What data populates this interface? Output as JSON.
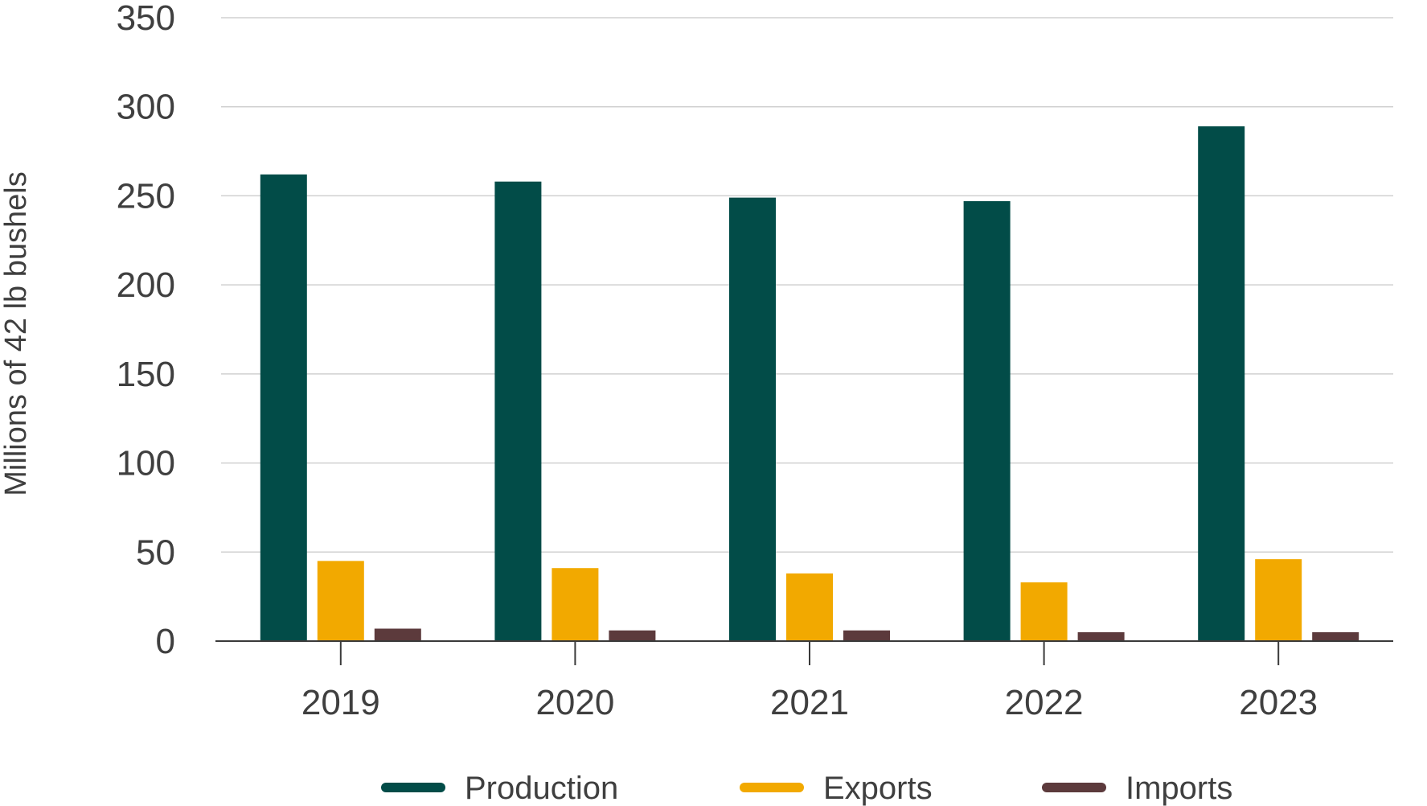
{
  "chart_data": {
    "type": "bar",
    "title": "",
    "xlabel": "",
    "ylabel": "Millions of 42 lb bushels",
    "categories": [
      "2019",
      "2020",
      "2021",
      "2022",
      "2023"
    ],
    "series": [
      {
        "name": "Production",
        "color": "#024c48",
        "values": [
          262,
          258,
          249,
          247,
          289
        ]
      },
      {
        "name": "Exports",
        "color": "#f2a900",
        "values": [
          45,
          41,
          38,
          33,
          46
        ]
      },
      {
        "name": "Imports",
        "color": "#5c3a3c",
        "values": [
          7,
          6,
          6,
          5,
          5
        ]
      }
    ],
    "ylim": [
      0,
      350
    ],
    "yticks": [
      "0",
      "50",
      "100",
      "150",
      "200",
      "250",
      "300",
      "350"
    ],
    "grid": true,
    "legend": "bottom"
  }
}
